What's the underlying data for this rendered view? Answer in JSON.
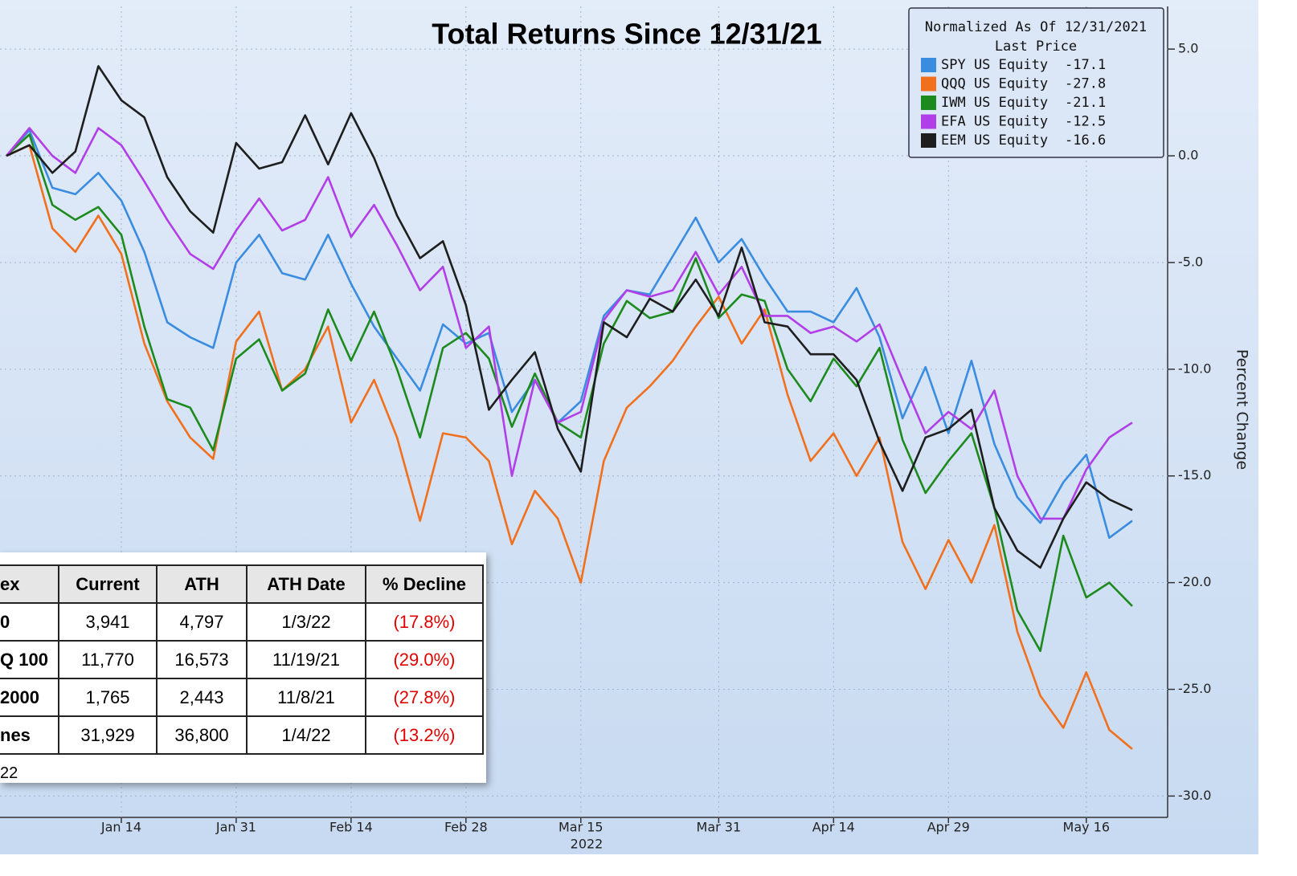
{
  "chart_data": {
    "type": "line",
    "title": "Total Returns Since 12/31/21",
    "x_label": "2022",
    "y_label": "Percent Change",
    "legend_title": "Normalized As Of 12/31/2021",
    "legend_subtitle": "Last Price",
    "categories": [
      null,
      null,
      null,
      null,
      null,
      "Jan 14",
      null,
      null,
      null,
      null,
      "Jan 31",
      null,
      null,
      null,
      null,
      "Feb 14",
      null,
      null,
      null,
      null,
      "Feb 28",
      null,
      null,
      null,
      null,
      "Mar 15",
      null,
      null,
      null,
      null,
      null,
      "Mar 31",
      null,
      null,
      null,
      null,
      "Apr 14",
      null,
      null,
      null,
      null,
      "Apr 29",
      null,
      null,
      null,
      null,
      null,
      "May 16",
      null,
      null
    ],
    "series": [
      {
        "name": "SPY US Equity",
        "color": "#3a8ce0",
        "values": [
          0,
          1.2,
          -1.5,
          -1.8,
          -0.8,
          -2.1,
          -4.5,
          -7.8,
          -8.5,
          -9,
          -5,
          -3.7,
          -5.5,
          -5.8,
          -3.7,
          -6,
          -8,
          -9.5,
          -11,
          -7.9,
          -8.8,
          -8.3,
          -12,
          -10.5,
          -12.5,
          -11.5,
          -7.5,
          -6.3,
          -6.5,
          -4.7,
          -2.9,
          -5,
          -3.9,
          -5.7,
          -7.3,
          -7.3,
          -7.8,
          -6.2,
          -8.5,
          -12.3,
          -9.9,
          -13,
          -9.6,
          -13.5,
          -16,
          -17.2,
          -15.3,
          -14,
          -17.9,
          -17.1
        ]
      },
      {
        "name": "QQQ US Equity",
        "color": "#f0701e",
        "values": [
          0,
          0.5,
          -3.4,
          -4.5,
          -2.8,
          -4.6,
          -8.8,
          -11.5,
          -13.2,
          -14.2,
          -8.7,
          -7.3,
          -11,
          -10,
          -8,
          -12.5,
          -10.5,
          -13.2,
          -17.1,
          -13,
          -13.2,
          -14.3,
          -18.2,
          -15.7,
          -17,
          -20,
          -14.3,
          -11.8,
          -10.8,
          -9.6,
          -8,
          -6.6,
          -8.8,
          -7.2,
          -11.2,
          -14.3,
          -13,
          -15,
          -13.2,
          -18.1,
          -20.3,
          -18,
          -20,
          -17.3,
          -22.3,
          -25.3,
          -26.8,
          -24.2,
          -26.9,
          -27.8
        ]
      },
      {
        "name": "IWM US Equity",
        "color": "#1d8a1d",
        "values": [
          0,
          1,
          -2.3,
          -3,
          -2.4,
          -3.7,
          -8,
          -11.4,
          -11.8,
          -13.8,
          -9.5,
          -8.6,
          -11,
          -10.2,
          -7.2,
          -9.6,
          -7.3,
          -10,
          -13.2,
          -9,
          -8.3,
          -9.5,
          -12.7,
          -10.2,
          -12.5,
          -13.2,
          -8.8,
          -6.8,
          -7.6,
          -7.3,
          -4.8,
          -7.6,
          -6.5,
          -6.8,
          -10,
          -11.5,
          -9.5,
          -10.8,
          -9,
          -13.3,
          -15.8,
          -14.3,
          -13,
          -16.5,
          -21.3,
          -23.2,
          -17.8,
          -20.7,
          -20,
          -21.1
        ]
      },
      {
        "name": "EFA US Equity",
        "color": "#b23ee8",
        "values": [
          0,
          1.3,
          0,
          -0.8,
          1.3,
          0.5,
          -1.2,
          -3,
          -4.6,
          -5.3,
          -3.5,
          -2,
          -3.5,
          -3,
          -1,
          -3.8,
          -2.3,
          -4.2,
          -6.3,
          -5.2,
          -9,
          -8,
          -15,
          -10.5,
          -12.5,
          -12,
          -7.7,
          -6.3,
          -6.6,
          -6.3,
          -4.5,
          -6.5,
          -5.2,
          -7.5,
          -7.5,
          -8.3,
          -8,
          -8.7,
          -7.9,
          -10.5,
          -13,
          -12,
          -12.8,
          -11,
          -15,
          -17,
          -17,
          -14.7,
          -13.2,
          -12.5
        ]
      },
      {
        "name": "EEM US Equity",
        "color": "#1e1e1e",
        "values": [
          0,
          0.5,
          -0.8,
          0.2,
          4.2,
          2.6,
          1.8,
          -1,
          -2.6,
          -3.6,
          0.6,
          -0.6,
          -0.3,
          1.9,
          -0.4,
          2,
          -0.1,
          -2.8,
          -4.8,
          -4,
          -7,
          -11.9,
          -10.5,
          -9.2,
          -12.8,
          -14.8,
          -7.8,
          -8.5,
          -6.7,
          -7.3,
          -5.8,
          -7.5,
          -4.3,
          -7.8,
          -8,
          -9.3,
          -9.3,
          -10.5,
          -13.4,
          -15.7,
          -13.2,
          -12.8,
          -11.9,
          -16.5,
          -18.5,
          -19.3,
          -17,
          -15.3,
          -16.1,
          -16.6
        ]
      }
    ],
    "ylim": [
      -31,
      7
    ],
    "yticks": [
      {
        "value": 5,
        "label": "5.0"
      },
      {
        "value": 0,
        "label": "0.0"
      },
      {
        "value": -5,
        "label": "-5.0"
      },
      {
        "value": -10,
        "label": "-10.0"
      },
      {
        "value": -15,
        "label": "-15.0"
      },
      {
        "value": -20,
        "label": "-20.0"
      },
      {
        "value": -25,
        "label": "-25.0"
      },
      {
        "value": -30,
        "label": "-30.0"
      }
    ],
    "grid": true,
    "legend": "upper right"
  },
  "table": {
    "columns": [
      "ex",
      "Current",
      "ATH",
      "ATH Date",
      "% Decline"
    ],
    "rows": [
      [
        "0",
        "3,941",
        "4,797",
        "1/3/22",
        "(17.8%)"
      ],
      [
        "Q 100",
        "11,770",
        "16,573",
        "11/19/21",
        "(29.0%)"
      ],
      [
        "2000",
        "1,765",
        "2,443",
        "11/8/21",
        "(27.8%)"
      ],
      [
        "nes",
        "31,929",
        "36,800",
        "1/4/22",
        "(13.2%)"
      ]
    ],
    "note": "22"
  }
}
